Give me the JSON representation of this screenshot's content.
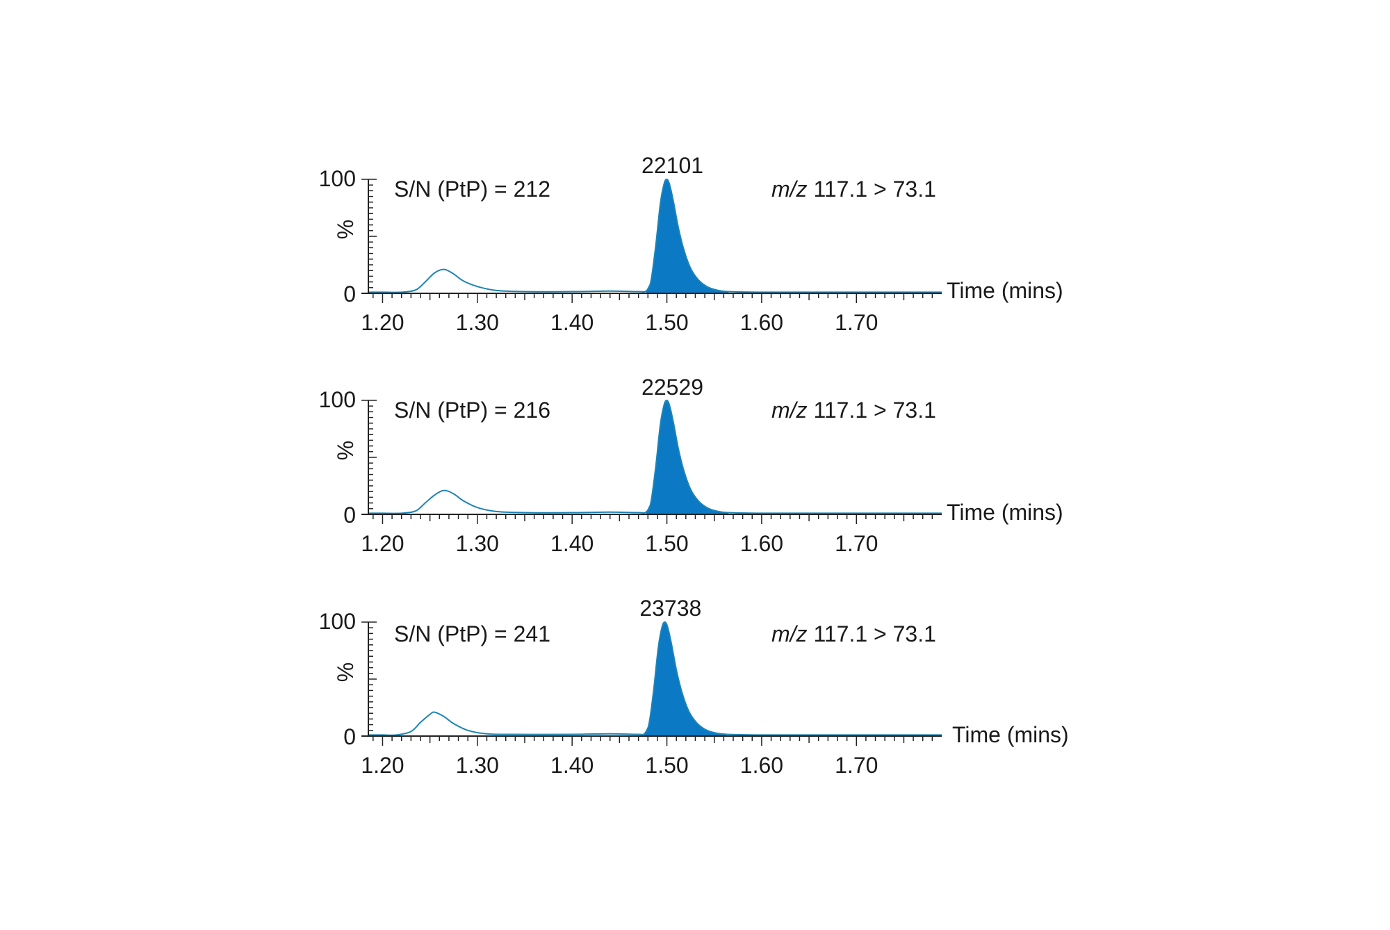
{
  "chart_data": [
    {
      "type": "line",
      "ylabel": "%",
      "xlabel": "Time (mins)",
      "ylim": [
        0,
        100
      ],
      "xlim": [
        1.185,
        1.79
      ],
      "y_ticks": [
        "0",
        "100"
      ],
      "x_ticks": [
        {
          "value": 1.2,
          "label": "1.20"
        },
        {
          "value": 1.3,
          "label": "1.30"
        },
        {
          "value": 1.4,
          "label": "1.40"
        },
        {
          "value": 1.5,
          "label": "1.50"
        },
        {
          "value": 1.6,
          "label": "1.60"
        },
        {
          "value": 1.7,
          "label": "1.70"
        }
      ],
      "sn_label": "S/N (PtP) = 212",
      "transition": {
        "prefix": "m/z",
        "text": " 117.1 > 73.1"
      },
      "peak_label": "22101",
      "peak": {
        "time": 1.5,
        "height": 100
      },
      "trace": {
        "x": [
          1.185,
          1.2,
          1.22,
          1.235,
          1.245,
          1.255,
          1.265,
          1.275,
          1.285,
          1.3,
          1.32,
          1.35,
          1.4,
          1.44,
          1.47,
          1.478,
          1.483,
          1.488,
          1.493,
          1.497,
          1.5,
          1.503,
          1.507,
          1.512,
          1.518,
          1.525,
          1.533,
          1.542,
          1.552,
          1.565,
          1.6,
          1.7,
          1.79
        ],
        "y": [
          1,
          1,
          1,
          3,
          10,
          18,
          21,
          17,
          11,
          6,
          2.5,
          1.5,
          1.5,
          2,
          1.5,
          2,
          10,
          40,
          78,
          96,
          100,
          95,
          80,
          58,
          38,
          22,
          12,
          6,
          3,
          1.5,
          1,
          1,
          1
        ]
      },
      "fill_range": [
        1.478,
        1.565
      ],
      "trace_color": "#1d84b5",
      "fill_color": "#0b79c4"
    },
    {
      "type": "line",
      "ylabel": "%",
      "xlabel": "Time (mins)",
      "ylim": [
        0,
        100
      ],
      "xlim": [
        1.185,
        1.79
      ],
      "y_ticks": [
        "0",
        "100"
      ],
      "x_ticks": [
        {
          "value": 1.2,
          "label": "1.20"
        },
        {
          "value": 1.3,
          "label": "1.30"
        },
        {
          "value": 1.4,
          "label": "1.40"
        },
        {
          "value": 1.5,
          "label": "1.50"
        },
        {
          "value": 1.6,
          "label": "1.60"
        },
        {
          "value": 1.7,
          "label": "1.70"
        }
      ],
      "sn_label": "S/N (PtP) = 216",
      "transition": {
        "prefix": "m/z",
        "text": " 117.1 > 73.1"
      },
      "peak_label": "22529",
      "peak": {
        "time": 1.5,
        "height": 100
      },
      "trace": {
        "x": [
          1.185,
          1.2,
          1.22,
          1.235,
          1.245,
          1.255,
          1.265,
          1.275,
          1.285,
          1.3,
          1.32,
          1.35,
          1.4,
          1.44,
          1.47,
          1.478,
          1.483,
          1.488,
          1.493,
          1.497,
          1.5,
          1.503,
          1.507,
          1.512,
          1.518,
          1.525,
          1.533,
          1.542,
          1.552,
          1.565,
          1.6,
          1.7,
          1.79
        ],
        "y": [
          1,
          1,
          1,
          3,
          10,
          17,
          21,
          18,
          12,
          6,
          2.5,
          1.5,
          1.5,
          2,
          1.5,
          2,
          10,
          40,
          78,
          96,
          100,
          95,
          80,
          58,
          38,
          22,
          12,
          6,
          3,
          1.5,
          1,
          1,
          1
        ]
      },
      "fill_range": [
        1.478,
        1.565
      ],
      "trace_color": "#1d84b5",
      "fill_color": "#0b79c4"
    },
    {
      "type": "line",
      "ylabel": "%",
      "xlabel": "Time (mins)",
      "ylim": [
        0,
        100
      ],
      "xlim": [
        1.185,
        1.79
      ],
      "y_ticks": [
        "0",
        "100"
      ],
      "x_ticks": [
        {
          "value": 1.2,
          "label": "1.20"
        },
        {
          "value": 1.3,
          "label": "1.30"
        },
        {
          "value": 1.4,
          "label": "1.40"
        },
        {
          "value": 1.5,
          "label": "1.50"
        },
        {
          "value": 1.6,
          "label": "1.60"
        },
        {
          "value": 1.7,
          "label": "1.70"
        }
      ],
      "sn_label": "S/N (PtP) = 241",
      "transition": {
        "prefix": "m/z",
        "text": " 117.1 > 73.1"
      },
      "peak_label": "23738",
      "peak": {
        "time": 1.498,
        "height": 100
      },
      "trace": {
        "x": [
          1.185,
          1.2,
          1.215,
          1.23,
          1.24,
          1.25,
          1.255,
          1.265,
          1.275,
          1.29,
          1.31,
          1.34,
          1.4,
          1.44,
          1.47,
          1.476,
          1.481,
          1.486,
          1.491,
          1.495,
          1.498,
          1.501,
          1.505,
          1.51,
          1.516,
          1.523,
          1.531,
          1.54,
          1.55,
          1.563,
          1.6,
          1.7,
          1.79
        ],
        "y": [
          1,
          1,
          1,
          4,
          12,
          19,
          21,
          17,
          11,
          5,
          2,
          1.5,
          1.5,
          2,
          1.5,
          2,
          10,
          40,
          78,
          96,
          100,
          95,
          80,
          58,
          38,
          22,
          12,
          6,
          3,
          1.5,
          1,
          1,
          1
        ]
      },
      "fill_range": [
        1.476,
        1.563
      ],
      "trace_color": "#1d84b5",
      "fill_color": "#0b79c4"
    }
  ]
}
